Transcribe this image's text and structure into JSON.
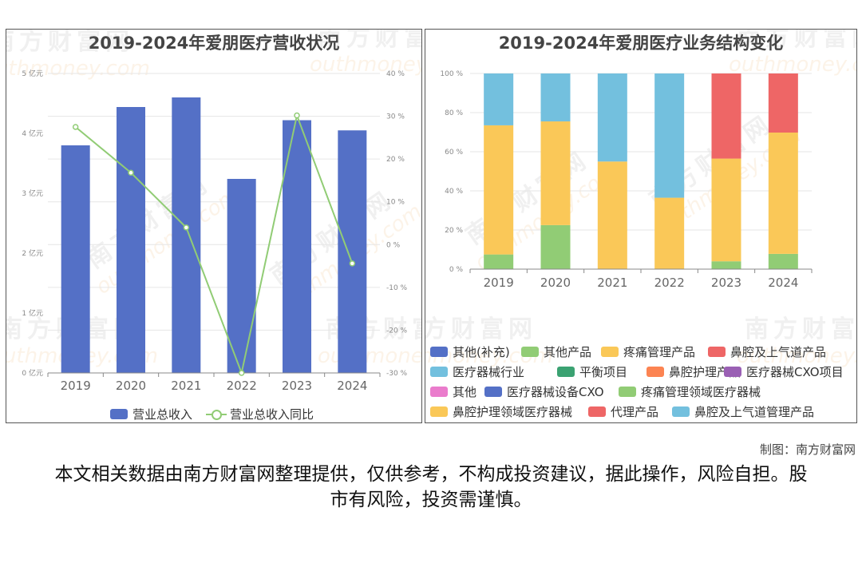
{
  "chart_data": [
    {
      "type": "bar",
      "title": "2019-2024年爱朋医疗营收状况",
      "categories": [
        "2019",
        "2020",
        "2021",
        "2022",
        "2023",
        "2024"
      ],
      "series": [
        {
          "name": "营业总收入",
          "type": "bar",
          "axis": "left",
          "color": "#5470c6",
          "values": [
            3.8,
            4.44,
            4.6,
            3.24,
            4.22,
            4.05
          ]
        },
        {
          "name": "营业总收入同比",
          "type": "line",
          "axis": "right",
          "color": "#91cc75",
          "values": [
            27.5,
            16.8,
            4.0,
            -30.0,
            30.2,
            -4.4
          ]
        }
      ],
      "y_left": {
        "min": 0,
        "max": 5,
        "ticks": [
          "0 亿元",
          "1 亿元",
          "2 亿元",
          "3 亿元",
          "4 亿元",
          "5 亿元"
        ]
      },
      "y_right": {
        "min": -30,
        "max": 40,
        "ticks": [
          "-30 %",
          "-20 %",
          "-10 %",
          "0 %",
          "10 %",
          "20 %",
          "30 %",
          "40 %"
        ]
      },
      "grid": true,
      "legend_position": "bottom"
    },
    {
      "type": "bar",
      "stacked": true,
      "title": "2019-2024年爱朋医疗业务结构变化",
      "categories": [
        "2019",
        "2020",
        "2021",
        "2022",
        "2023",
        "2024"
      ],
      "series": [
        {
          "name": "其他(补充)",
          "color": "#5470c6",
          "values": [
            0,
            0,
            0,
            0,
            0,
            0
          ]
        },
        {
          "name": "其他产品",
          "color": "#91cc75",
          "values": [
            7.5,
            22.5,
            0,
            0,
            4,
            7.8
          ]
        },
        {
          "name": "疼痛管理产品",
          "color": "#fac858",
          "values": [
            66,
            53,
            55,
            36.5,
            52.5,
            62
          ]
        },
        {
          "name": "鼻腔及上气道产品",
          "color": "#ee6666",
          "values": [
            0,
            0,
            0,
            0,
            43.5,
            30.2
          ]
        },
        {
          "name": "医疗器械行业",
          "color": "#73c0de",
          "values": [
            26.5,
            24.5,
            45,
            63.5,
            0,
            0
          ]
        },
        {
          "name": "平衡项目",
          "color": "#3ba272",
          "values": [
            0,
            0,
            0,
            0,
            0,
            0
          ]
        },
        {
          "name": "鼻腔护理产品",
          "color": "#fc8452",
          "values": [
            0,
            0,
            0,
            0,
            0,
            0
          ]
        },
        {
          "name": "医疗器械CXO项目",
          "color": "#9a60b4",
          "values": [
            0,
            0,
            0,
            0,
            0,
            0
          ]
        },
        {
          "name": "其他",
          "color": "#ea7ccc",
          "values": [
            0,
            0,
            0,
            0,
            0,
            0
          ]
        },
        {
          "name": "医疗器械设备CXO",
          "color": "#5470c6",
          "values": [
            0,
            0,
            0,
            0,
            0,
            0
          ]
        },
        {
          "name": "疼痛管理领域医疗器械",
          "color": "#91cc75",
          "values": [
            0,
            0,
            0,
            0,
            0,
            0
          ]
        },
        {
          "name": "鼻腔护理领域医疗器械",
          "color": "#fac858",
          "values": [
            0,
            0,
            0,
            0,
            0,
            0
          ]
        },
        {
          "name": "代理产品",
          "color": "#ee6666",
          "values": [
            0,
            0,
            0,
            0,
            0,
            0
          ]
        },
        {
          "name": "鼻腔及上气道管理产品",
          "color": "#73c0de",
          "values": [
            0,
            0,
            0,
            0,
            0,
            0
          ]
        }
      ],
      "y": {
        "min": 0,
        "max": 100,
        "ticks": [
          "0 %",
          "20 %",
          "40 %",
          "60 %",
          "80 %",
          "100 %"
        ]
      },
      "grid": true,
      "legend_position": "bottom"
    }
  ],
  "watermark": {
    "cn": "南方财富网",
    "en": "outhmoney.com"
  },
  "credit": "制图：南方财富网",
  "disclaimer": "本文相关数据由南方财富网整理提供，仅供参考，不构成投资建议，据此操作，风险自担。股市有风险，投资需谨慎。"
}
